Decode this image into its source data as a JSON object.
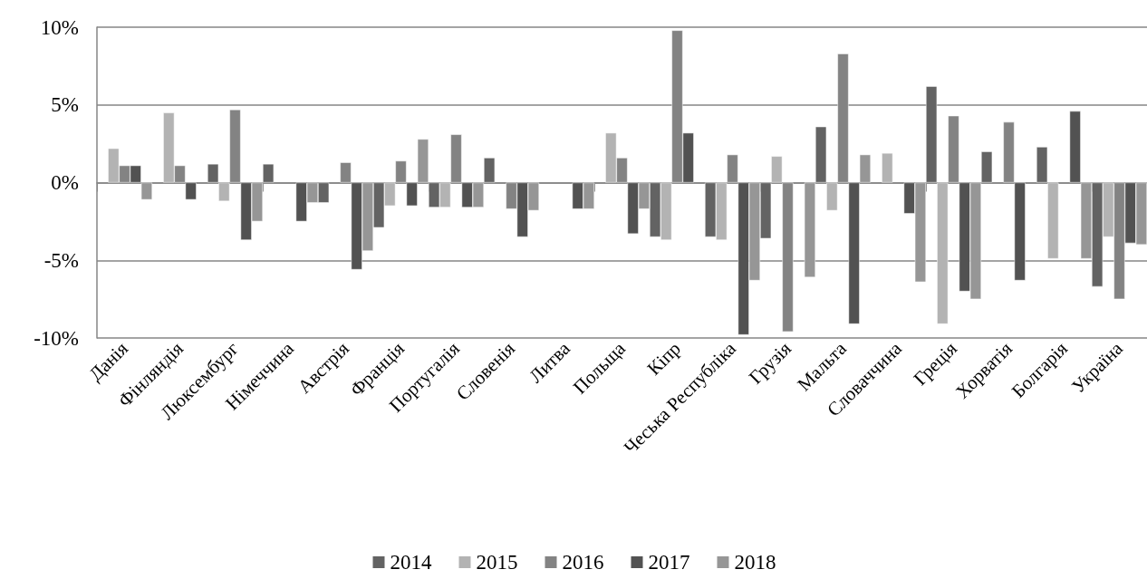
{
  "chart_data": {
    "type": "bar",
    "categories": [
      "Данія",
      "Фінляндія",
      "Люксембург",
      "Німеччина",
      "Австрія",
      "Франція",
      "Португалія",
      "Словенія",
      "Литва",
      "Польща",
      "Кіпр",
      "Чеська Республіка",
      "Грузія",
      "Мальта",
      "Словаччина",
      "Греція",
      "Хорватія",
      "Болгарія",
      "Україна"
    ],
    "series": [
      {
        "name": "2014",
        "color": "#636363",
        "values": [
          null,
          null,
          1.2,
          1.2,
          -1.3,
          -2.9,
          -1.6,
          1.6,
          null,
          null,
          -3.5,
          -3.5,
          -3.6,
          3.6,
          null,
          6.2,
          2.0,
          2.3,
          -6.7
        ]
      },
      {
        "name": "2015",
        "color": "#b3b3b3",
        "values": [
          2.2,
          4.5,
          -1.2,
          null,
          null,
          -1.5,
          -1.6,
          null,
          null,
          3.2,
          -3.7,
          -3.7,
          1.7,
          -1.8,
          1.9,
          -9.1,
          null,
          -4.9,
          -3.5
        ]
      },
      {
        "name": "2016",
        "color": "#838383",
        "values": [
          1.1,
          1.1,
          4.7,
          null,
          1.3,
          1.4,
          3.1,
          -1.7,
          null,
          1.6,
          9.8,
          1.8,
          -9.6,
          8.3,
          null,
          4.3,
          3.9,
          null,
          -7.5
        ]
      },
      {
        "name": "2017",
        "color": "#525252",
        "values": [
          1.1,
          -1.1,
          -3.7,
          -2.5,
          -5.6,
          -1.5,
          -1.6,
          -3.5,
          -1.7,
          -3.3,
          3.2,
          -9.8,
          null,
          -9.1,
          -2.0,
          -7.0,
          -6.3,
          4.6,
          -3.9
        ]
      },
      {
        "name": "2018",
        "color": "#969696",
        "values": [
          -1.1,
          null,
          -2.5,
          -1.3,
          -4.4,
          2.8,
          -1.6,
          -1.8,
          -1.7,
          -1.7,
          null,
          -6.3,
          -6.1,
          1.8,
          -6.4,
          -7.5,
          null,
          -4.9,
          -4.0
        ]
      }
    ],
    "ylim": [
      -10,
      10
    ],
    "yticks": [
      {
        "value": -10,
        "label": "-10%"
      },
      {
        "value": -5,
        "label": "-5%"
      },
      {
        "value": 0,
        "label": "0%"
      },
      {
        "value": 5,
        "label": "5%"
      },
      {
        "value": 10,
        "label": "10%"
      }
    ],
    "grid": "y",
    "legend": "bottom"
  }
}
